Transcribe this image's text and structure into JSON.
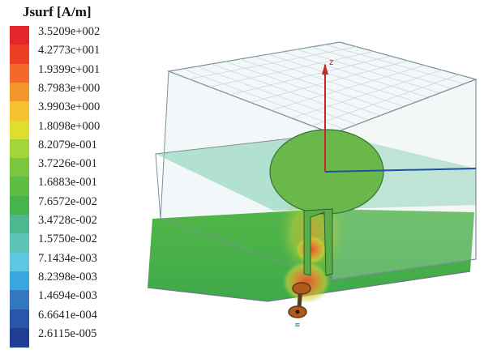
{
  "legend": {
    "title": "Jsurf [A/m]",
    "entries": [
      {
        "label": "3.5209e+002",
        "color": "#e3272a"
      },
      {
        "label": "4.2773c+001",
        "color": "#ea3f25"
      },
      {
        "label": "1.9399c+001",
        "color": "#f2692a"
      },
      {
        "label": "8.7983e+000",
        "color": "#f4952c"
      },
      {
        "label": "3.9903e+000",
        "color": "#f5c12e"
      },
      {
        "label": "1.8098e+000",
        "color": "#dede2e"
      },
      {
        "label": "8.2079e-001",
        "color": "#a3d43a"
      },
      {
        "label": "3.7226e-001",
        "color": "#7cc63f"
      },
      {
        "label": "1.6883e-001",
        "color": "#5cbc44"
      },
      {
        "label": "7.6572e-002",
        "color": "#45b44a"
      },
      {
        "label": "3.4728c-002",
        "color": "#4db88f"
      },
      {
        "label": "1.5750e-002",
        "color": "#5ec4b5"
      },
      {
        "label": "7.1434e-003",
        "color": "#5ec8e2"
      },
      {
        "label": "8.2398e-003",
        "color": "#3aa6df"
      },
      {
        "label": "1.4694e-003",
        "color": "#3578c2"
      },
      {
        "label": "6.6641e-004",
        "color": "#2a55a8"
      },
      {
        "label": "2.6115e-005",
        "color": "#1f3f94"
      }
    ]
  },
  "viewport": {
    "axis_label": "z",
    "colors": {
      "substrate_green": "#55b847",
      "box_edge": "#7f8f98",
      "grid_line": "#c9d4d9",
      "axis_red": "#c62828",
      "axis_blue": "#1e4fa3",
      "hotspot": "#e6582a"
    }
  }
}
